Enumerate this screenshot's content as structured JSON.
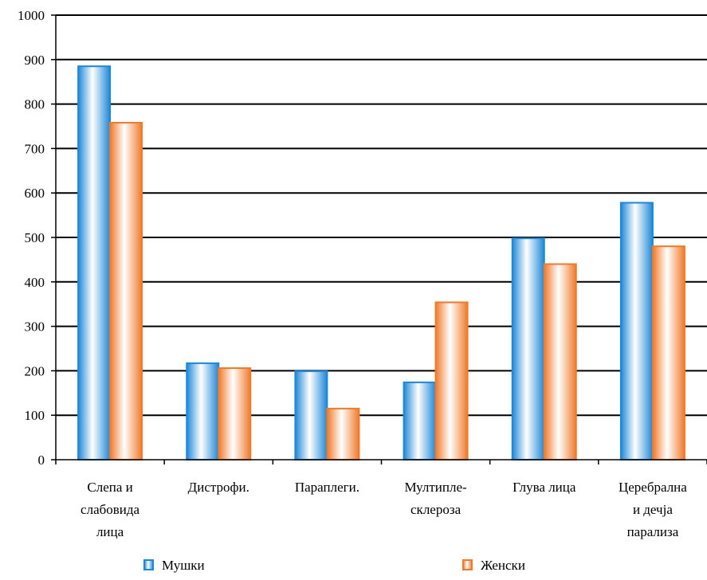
{
  "chart_data": {
    "type": "bar",
    "categories": [
      [
        "Слепа и",
        "слабовида",
        "лица"
      ],
      [
        "Дистрофи."
      ],
      [
        "Параплеги."
      ],
      [
        "Мултипле-",
        "склероза"
      ],
      [
        "Глува лица"
      ],
      [
        "Церебрална",
        "и дечја",
        "парализа"
      ]
    ],
    "series": [
      {
        "name": "Мушки",
        "values": [
          885,
          217,
          199,
          174,
          498,
          578
        ],
        "color": "#1e88d8"
      },
      {
        "name": "Женски",
        "values": [
          758,
          206,
          115,
          354,
          440,
          480
        ],
        "color": "#f07a2a"
      }
    ],
    "ylim": [
      0,
      1000
    ],
    "yticks": [
      0,
      100,
      200,
      300,
      400,
      500,
      600,
      700,
      800,
      900,
      1000
    ],
    "grid": true,
    "legend_position": "bottom",
    "title": "",
    "xlabel": "",
    "ylabel": ""
  }
}
